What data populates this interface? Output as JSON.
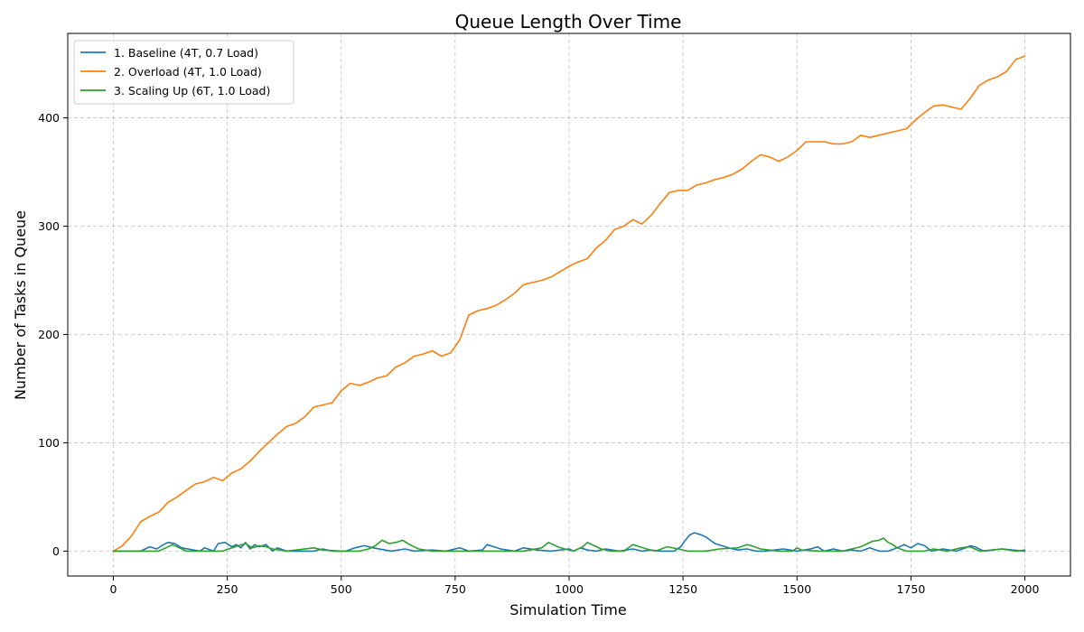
{
  "chart_data": {
    "type": "line",
    "title": "Queue Length Over Time",
    "xlabel": "Simulation Time",
    "ylabel": "Number of Tasks in Queue",
    "xlim": [
      -100,
      2100
    ],
    "ylim": [
      -23,
      478
    ],
    "xticks": [
      0,
      250,
      500,
      750,
      1000,
      1250,
      1500,
      1750,
      2000
    ],
    "yticks": [
      0,
      100,
      200,
      300,
      400
    ],
    "grid": true,
    "legend_position": "top-left",
    "series": [
      {
        "name": "1. Baseline (4T, 0.7 Load)",
        "color": "#1f77b4",
        "x": [
          0,
          60,
          70,
          80,
          95,
          110,
          120,
          135,
          150,
          190,
          200,
          220,
          230,
          245,
          260,
          270,
          280,
          290,
          300,
          310,
          320,
          335,
          350,
          360,
          380,
          440,
          460,
          480,
          510,
          530,
          550,
          570,
          610,
          640,
          660,
          700,
          730,
          760,
          780,
          810,
          820,
          835,
          850,
          880,
          900,
          930,
          960,
          1000,
          1010,
          1025,
          1040,
          1060,
          1080,
          1110,
          1140,
          1160,
          1180,
          1200,
          1230,
          1245,
          1255,
          1265,
          1275,
          1282,
          1290,
          1300,
          1310,
          1320,
          1335,
          1350,
          1370,
          1390,
          1410,
          1430,
          1470,
          1500,
          1530,
          1545,
          1560,
          1580,
          1600,
          1620,
          1640,
          1660,
          1680,
          1700,
          1720,
          1735,
          1750,
          1765,
          1780,
          1795,
          1820,
          1850,
          1870,
          1880,
          1890,
          1910,
          1950,
          2000
        ],
        "y": [
          0,
          0,
          2,
          4,
          2,
          6,
          8,
          7,
          3,
          0,
          3,
          0,
          7,
          8,
          4,
          6,
          3,
          8,
          2,
          6,
          4,
          6,
          0,
          3,
          0,
          0,
          2,
          0,
          0,
          3,
          5,
          3,
          0,
          2,
          0,
          1,
          0,
          3,
          0,
          1,
          6,
          4,
          2,
          0,
          3,
          1,
          0,
          2,
          0,
          3,
          1,
          0,
          2,
          0,
          2,
          0,
          1,
          0,
          0,
          4,
          10,
          15,
          17,
          16,
          15,
          13,
          10,
          7,
          5,
          3,
          1,
          2,
          0,
          0,
          2,
          0,
          2,
          4,
          0,
          2,
          0,
          1,
          0,
          3,
          0,
          0,
          3,
          6,
          3,
          7,
          5,
          0,
          2,
          0,
          3,
          5,
          4,
          0,
          2,
          0
        ]
      },
      {
        "name": "2. Overload (4T, 1.0 Load)",
        "color": "#ff7f0e",
        "x": [
          0,
          20,
          40,
          60,
          80,
          100,
          120,
          140,
          160,
          180,
          200,
          220,
          240,
          260,
          280,
          300,
          320,
          340,
          360,
          380,
          400,
          420,
          440,
          460,
          480,
          500,
          520,
          540,
          560,
          580,
          600,
          620,
          640,
          660,
          680,
          700,
          720,
          740,
          760,
          780,
          800,
          820,
          840,
          860,
          880,
          900,
          920,
          940,
          960,
          980,
          1000,
          1020,
          1040,
          1060,
          1080,
          1100,
          1120,
          1140,
          1160,
          1180,
          1200,
          1220,
          1240,
          1260,
          1280,
          1300,
          1320,
          1340,
          1360,
          1380,
          1400,
          1420,
          1440,
          1460,
          1480,
          1500,
          1520,
          1540,
          1560,
          1580,
          1600,
          1620,
          1640,
          1660,
          1680,
          1700,
          1720,
          1740,
          1760,
          1780,
          1800,
          1820,
          1840,
          1860,
          1880,
          1900,
          1920,
          1940,
          1960,
          1980,
          2000
        ],
        "y": [
          0,
          5,
          14,
          27,
          32,
          36,
          45,
          50,
          56,
          62,
          64,
          68,
          65,
          72,
          76,
          83,
          92,
          100,
          108,
          115,
          118,
          124,
          133,
          135,
          137,
          148,
          155,
          153,
          156,
          160,
          162,
          170,
          174,
          180,
          182,
          185,
          180,
          183,
          195,
          218,
          222,
          224,
          227,
          232,
          238,
          246,
          248,
          250,
          253,
          258,
          263,
          267,
          270,
          280,
          287,
          297,
          300,
          306,
          302,
          310,
          321,
          331,
          333,
          333,
          338,
          340,
          343,
          345,
          348,
          353,
          360,
          366,
          364,
          360,
          364,
          370,
          378,
          378,
          378,
          376,
          376,
          378,
          384,
          382,
          384,
          386,
          388,
          390,
          398,
          405,
          411,
          412,
          410,
          408,
          418,
          430,
          435,
          438,
          443,
          454,
          457
        ]
      },
      {
        "name": "3. Scaling Up (6T, 1.0 Load)",
        "color": "#2ca02c",
        "x": [
          0,
          100,
          115,
          130,
          160,
          200,
          240,
          260,
          275,
          290,
          305,
          320,
          335,
          350,
          380,
          440,
          460,
          500,
          540,
          560,
          575,
          590,
          605,
          620,
          635,
          650,
          670,
          700,
          750,
          800,
          850,
          900,
          940,
          955,
          965,
          975,
          990,
          1010,
          1030,
          1040,
          1055,
          1070,
          1090,
          1120,
          1140,
          1155,
          1170,
          1190,
          1215,
          1240,
          1260,
          1300,
          1330,
          1370,
          1390,
          1400,
          1420,
          1460,
          1490,
          1500,
          1510,
          1550,
          1600,
          1620,
          1640,
          1655,
          1665,
          1680,
          1690,
          1700,
          1710,
          1720,
          1740,
          1780,
          1800,
          1830,
          1860,
          1880,
          1900,
          1950,
          1980,
          2000
        ],
        "y": [
          0,
          0,
          3,
          6,
          0,
          0,
          0,
          3,
          5,
          7,
          3,
          5,
          4,
          2,
          0,
          3,
          1,
          0,
          0,
          2,
          5,
          10,
          7,
          8,
          10,
          6,
          2,
          0,
          0,
          0,
          0,
          0,
          3,
          8,
          6,
          4,
          2,
          0,
          4,
          8,
          5,
          2,
          0,
          0,
          6,
          4,
          2,
          0,
          4,
          2,
          0,
          0,
          2,
          3,
          6,
          5,
          2,
          0,
          0,
          3,
          1,
          0,
          0,
          2,
          4,
          7,
          9,
          10,
          12,
          8,
          6,
          3,
          0,
          0,
          2,
          0,
          3,
          4,
          0,
          2,
          0,
          1
        ]
      }
    ]
  }
}
